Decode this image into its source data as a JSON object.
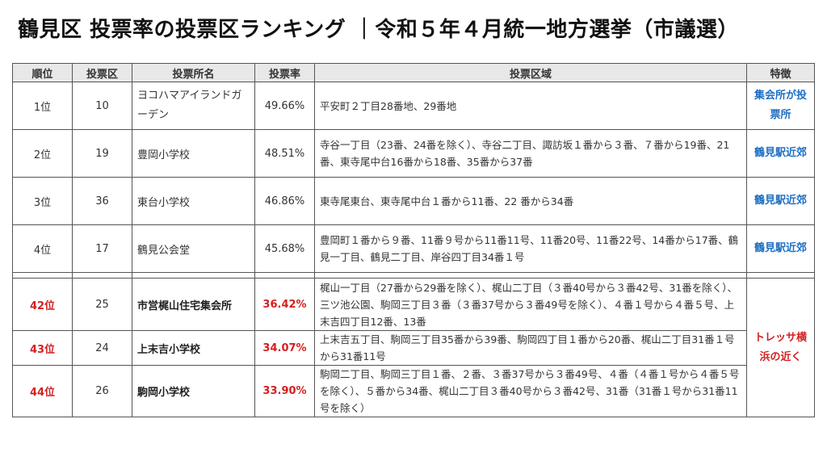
{
  "title": "鶴見区 投票率の投票区ランキング ｜令和５年４月統一地方選挙（市議選）",
  "headers": [
    "順位",
    "投票区",
    "投票所名",
    "投票率",
    "投票区域",
    "特徴"
  ],
  "top_rows": [
    {
      "rank": "1位",
      "district": "10",
      "place": "ヨコハマアイランドガーデン",
      "rate": "49.66%",
      "area": "平安町２丁目28番地、29番地",
      "feature": "集会所が投票所"
    },
    {
      "rank": "2位",
      "district": "19",
      "place": "豊岡小学校",
      "rate": "48.51%",
      "area": "寺谷一丁目（23番、24番を除く）、寺谷二丁目、諏訪坂１番から３番、７番から19番、21番、東寺尾中台16番から18番、35番から37番",
      "feature": "鶴見駅近郊"
    },
    {
      "rank": "3位",
      "district": "36",
      "place": "東台小学校",
      "rate": "46.86%",
      "area": "東寺尾東台、東寺尾中台１番から11番、22 番から34番",
      "feature": "鶴見駅近郊"
    },
    {
      "rank": "4位",
      "district": "17",
      "place": "鶴見公会堂",
      "rate": "45.68%",
      "area": "豊岡町１番から９番、11番９号から11番11号、11番20号、11番22号、14番から17番、鶴見一丁目、鶴見二丁目、岸谷四丁目34番１号",
      "feature": "鶴見駅近郊"
    }
  ],
  "bottom_rows": [
    {
      "rank": "42位",
      "district": "25",
      "place": "市営梶山住宅集会所",
      "rate": "36.42%",
      "area": "梶山一丁目（27番から29番を除く）、梶山二丁目（３番40号から３番42号、31番を除く）、三ツ池公園、駒岡三丁目３番（３番37号から３番49号を除く）、４番１号から４番５号、上末吉四丁目12番、13番"
    },
    {
      "rank": "43位",
      "district": "24",
      "place": "上末吉小学校",
      "rate": "34.07%",
      "area": "上末吉五丁目、駒岡三丁目35番から39番、駒岡四丁目１番から20番、梶山二丁目31番１号から31番11号"
    },
    {
      "rank": "44位",
      "district": "26",
      "place": "駒岡小学校",
      "rate": "33.90%",
      "area": "駒岡二丁目、駒岡三丁目１番、２番、３番37号から３番49号、４番（４番１号から４番５号を除く）、５番から34番、梶山二丁目３番40号から３番42号、31番（31番１号から31番11号を除く）"
    }
  ],
  "bottom_feature": "トレッサ横浜の近く",
  "colors": {
    "accent_red": "#d42020",
    "accent_blue": "#1d6fc4",
    "header_bg": "#e8e8e8"
  }
}
